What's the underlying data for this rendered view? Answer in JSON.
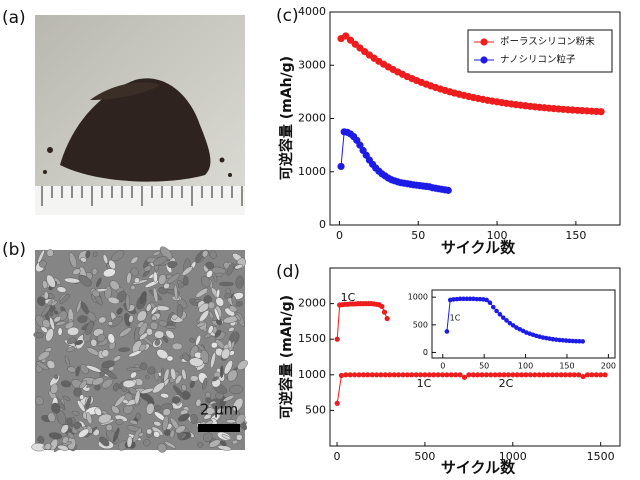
{
  "panels": [
    {
      "label": "(a)"
    },
    {
      "label": "(b)",
      "scale_bar": "2 μm"
    }
  ],
  "chart_data": [
    {
      "type": "line",
      "panel_label": "(c)",
      "xlabel": "サイクル数",
      "ylabel": "可逆容量 (mAh/g)",
      "xlim": [
        -6,
        178
      ],
      "ylim": [
        0,
        4000
      ],
      "xticks": [
        0,
        50,
        100,
        150
      ],
      "yticks": [
        0,
        1000,
        2000,
        3000,
        4000
      ],
      "grid": false,
      "legend": "upper right",
      "series": [
        {
          "name": "ポーラスシリコン粉末",
          "color": "#ee1c1c",
          "x": [
            1,
            4,
            7,
            10,
            13,
            16,
            19,
            22,
            25,
            28,
            31,
            34,
            37,
            40,
            43,
            46,
            49,
            52,
            55,
            58,
            61,
            64,
            67,
            70,
            73,
            76,
            79,
            82,
            85,
            88,
            91,
            94,
            97,
            100,
            103,
            106,
            109,
            112,
            115,
            118,
            121,
            124,
            127,
            130,
            133,
            136,
            139,
            142,
            145,
            148,
            151,
            154,
            157,
            160,
            163,
            166
          ],
          "values": [
            3500,
            3550,
            3470,
            3395,
            3324,
            3256,
            3192,
            3131,
            3074,
            3020,
            2968,
            2920,
            2874,
            2830,
            2788,
            2749,
            2712,
            2677,
            2644,
            2612,
            2582,
            2554,
            2527,
            2502,
            2478,
            2455,
            2434,
            2413,
            2394,
            2376,
            2359,
            2342,
            2326,
            2312,
            2298,
            2285,
            2272,
            2260,
            2249,
            2239,
            2229,
            2219,
            2210,
            2202,
            2194,
            2186,
            2179,
            2172,
            2165,
            2159,
            2154,
            2148,
            2143,
            2137,
            2133,
            2128
          ]
        },
        {
          "name": "ナノシリコン粒子",
          "color": "#1c1ce6",
          "x": [
            1,
            3,
            5,
            7,
            9,
            11,
            13,
            15,
            17,
            19,
            21,
            23,
            25,
            27,
            29,
            31,
            33,
            35,
            37,
            39,
            41,
            43,
            45,
            47,
            49,
            51,
            53,
            55,
            57,
            59,
            61,
            63,
            65,
            67,
            69
          ],
          "values": [
            1100,
            1750,
            1740,
            1710,
            1660,
            1590,
            1500,
            1400,
            1310,
            1220,
            1140,
            1070,
            1010,
            960,
            920,
            880,
            850,
            830,
            810,
            795,
            785,
            775,
            765,
            755,
            748,
            740,
            732,
            725,
            718,
            700,
            690,
            680,
            670,
            660,
            650
          ]
        }
      ]
    },
    {
      "type": "line",
      "panel_label": "(d)",
      "xlabel": "サイクル数",
      "ylabel": "可逆容量 (mAh/g)",
      "xlim": [
        -40,
        1610
      ],
      "ylim": [
        0,
        2500
      ],
      "xticks": [
        0,
        500,
        1000,
        1500
      ],
      "yticks": [
        500,
        1000,
        1500,
        2000
      ],
      "grid": false,
      "annotations": [
        "1C",
        "1C",
        "2C"
      ],
      "series": [
        {
          "color": "#ee1c1c",
          "x": [
            1,
            15,
            30,
            45,
            60,
            75,
            90,
            105,
            120,
            135,
            150,
            165,
            180,
            195,
            210,
            225,
            240,
            255,
            270,
            285
          ],
          "values": [
            1500,
            1980,
            1985,
            1990,
            1990,
            1995,
            1995,
            1995,
            2000,
            2000,
            2000,
            2000,
            2000,
            2000,
            1995,
            1990,
            1985,
            1960,
            1880,
            1790
          ]
        },
        {
          "color": "#ee1c1c",
          "x": [
            1,
            25,
            50,
            75,
            100,
            125,
            150,
            175,
            200,
            225,
            250,
            275,
            300,
            325,
            350,
            375,
            400,
            425,
            450,
            475,
            500,
            525,
            550,
            575,
            600,
            625,
            650,
            675,
            700,
            725,
            750,
            775,
            800,
            825,
            850,
            875,
            900,
            925,
            950,
            975,
            1000,
            1025,
            1050,
            1075,
            1100,
            1125,
            1150,
            1175,
            1200,
            1225,
            1250,
            1275,
            1300,
            1325,
            1350,
            1375,
            1400,
            1425,
            1450,
            1475,
            1500,
            1525
          ],
          "values": [
            600,
            990,
            1000,
            1000,
            1000,
            1000,
            1000,
            1000,
            1000,
            1000,
            1000,
            1000,
            1000,
            1000,
            1000,
            1000,
            1000,
            1000,
            1000,
            1000,
            1000,
            1000,
            1000,
            1000,
            1000,
            1000,
            1000,
            1000,
            1000,
            965,
            1000,
            1000,
            1000,
            1000,
            1000,
            1000,
            1000,
            1000,
            1000,
            1000,
            1000,
            1000,
            1000,
            1000,
            1000,
            1000,
            1000,
            1000,
            1000,
            1000,
            1000,
            1000,
            1000,
            1000,
            1000,
            1000,
            975,
            1000,
            1000,
            1000,
            1000,
            1000
          ]
        }
      ]
    },
    {
      "type": "line",
      "xlim": [
        -13,
        208
      ],
      "ylim": [
        -100,
        1130
      ],
      "xticks": [
        0,
        50,
        100,
        150,
        200
      ],
      "yticks": [
        0,
        500,
        1000
      ],
      "grid": false,
      "annotations": [
        "1C"
      ],
      "series": [
        {
          "color": "#1c1ce6",
          "x": [
            5,
            9,
            13,
            17,
            21,
            25,
            29,
            33,
            37,
            41,
            45,
            49,
            53,
            57,
            61,
            65,
            69,
            73,
            77,
            81,
            85,
            89,
            93,
            97,
            101,
            105,
            109,
            113,
            117,
            121,
            125,
            129,
            133,
            137,
            141,
            145,
            149,
            153,
            157,
            161,
            165,
            169
          ],
          "values": [
            380,
            950,
            960,
            965,
            970,
            970,
            970,
            970,
            970,
            965,
            965,
            960,
            950,
            900,
            820,
            750,
            690,
            630,
            580,
            530,
            490,
            450,
            420,
            390,
            360,
            340,
            320,
            300,
            285,
            270,
            260,
            250,
            240,
            232,
            225,
            220,
            215,
            210,
            207,
            204,
            202,
            200
          ]
        }
      ]
    }
  ]
}
